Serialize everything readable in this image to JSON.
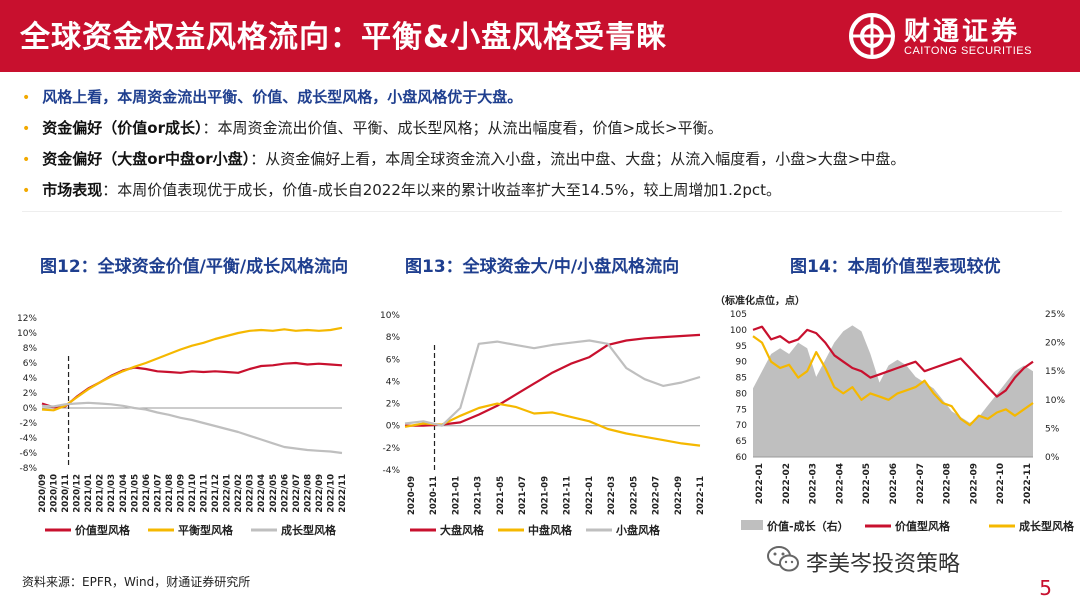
{
  "header": {
    "title": "全球资金权益风格流向：平衡&小盘风格受青睐",
    "brand_name": "财通证券",
    "brand_sub": "CAITONG SECURITIES"
  },
  "bullets": [
    {
      "label": "",
      "text": "风格上看，本周资金流出平衡、价值、成长型风格，小盘风格优于大盘。"
    },
    {
      "label": "资金偏好（价值or成长）",
      "text": "：本周资金流出价值、平衡、成长型风格；从流出幅度看，价值>成长>平衡。"
    },
    {
      "label": "资金偏好（大盘or中盘or小盘）",
      "text": "：从资金偏好上看，本周全球资金流入小盘，流出中盘、大盘；从流入幅度看，小盘>大盘>中盘。"
    },
    {
      "label": "市场表现",
      "text": "：本周价值表现优于成长，价值-成长自2022年以来的累计收益率扩大至14.5%，较上周增加1.2pct。"
    }
  ],
  "colors": {
    "red": "#c8102e",
    "yellow": "#f5b800",
    "gray": "#bfbfbf",
    "navy": "#1f3f8f",
    "bullet": "#f2a900"
  },
  "chart_data": [
    {
      "type": "line",
      "title": "图12：全球资金价值/平衡/成长风格流向",
      "ylim": [
        -8,
        12
      ],
      "yticks": [
        "12%",
        "10%",
        "8%",
        "6%",
        "4%",
        "2%",
        "0%",
        "-2%",
        "-4%",
        "-6%",
        "-8%"
      ],
      "xticks": [
        "2020/09",
        "2020/10",
        "2020/11",
        "2020/12",
        "2021/01",
        "2021/02",
        "2021/03",
        "2021/04",
        "2021/05",
        "2021/06",
        "2021/07",
        "2021/08",
        "2021/09",
        "2021/10",
        "2021/11",
        "2021/12",
        "2022/01",
        "2022/02",
        "2022/03",
        "2022/04",
        "2022/05",
        "2022/06",
        "2022/07",
        "2022/08",
        "2022/09",
        "2022/10",
        "2022/11"
      ],
      "marker_index": 2.3,
      "series": [
        {
          "name": "价值型风格",
          "color": "#c8102e",
          "values": [
            0.6,
            0.1,
            0.2,
            1.5,
            2.6,
            3.4,
            4.3,
            5.0,
            5.4,
            5.2,
            4.9,
            4.8,
            4.7,
            4.9,
            4.8,
            4.9,
            4.8,
            4.7,
            5.2,
            5.6,
            5.7,
            5.9,
            6.0,
            5.8,
            5.9,
            5.8,
            5.7
          ]
        },
        {
          "name": "平衡型风格",
          "color": "#f5b800",
          "values": [
            -0.2,
            -0.3,
            0.3,
            1.4,
            2.5,
            3.4,
            4.2,
            4.9,
            5.5,
            6.0,
            6.6,
            7.2,
            7.8,
            8.3,
            8.7,
            9.2,
            9.6,
            10.0,
            10.3,
            10.4,
            10.3,
            10.5,
            10.3,
            10.4,
            10.3,
            10.4,
            10.7
          ]
        },
        {
          "name": "成长型风格",
          "color": "#bfbfbf",
          "values": [
            0.3,
            0.2,
            0.5,
            0.6,
            0.7,
            0.6,
            0.5,
            0.3,
            0.0,
            -0.2,
            -0.6,
            -0.9,
            -1.3,
            -1.6,
            -2.0,
            -2.4,
            -2.8,
            -3.2,
            -3.7,
            -4.2,
            -4.7,
            -5.2,
            -5.4,
            -5.6,
            -5.7,
            -5.8,
            -6.0
          ]
        }
      ]
    },
    {
      "type": "line",
      "title": "图13：全球资金大/中/小盘风格流向",
      "ylim": [
        -4,
        10
      ],
      "yticks": [
        "10%",
        "8%",
        "6%",
        "4%",
        "2%",
        "0%",
        "-2%",
        "-4%"
      ],
      "xticks": [
        "2020-09",
        "2020-11",
        "2021-01",
        "2021-03",
        "2021-05",
        "2021-07",
        "2021-09",
        "2021-11",
        "2022-01",
        "2022-03",
        "2022-05",
        "2022-07",
        "2022-09",
        "2022-11"
      ],
      "marker_index": 2.5,
      "series": [
        {
          "name": "大盘风格",
          "color": "#c8102e",
          "values": [
            0.0,
            0.0,
            0.1,
            0.3,
            1.0,
            1.8,
            2.8,
            3.8,
            4.8,
            5.6,
            6.2,
            7.3,
            7.7,
            7.9,
            8.0,
            8.1,
            8.2
          ]
        },
        {
          "name": "中盘风格",
          "color": "#f5b800",
          "values": [
            -0.1,
            0.2,
            0.1,
            0.9,
            1.6,
            2.0,
            1.7,
            1.1,
            1.2,
            0.8,
            0.4,
            -0.3,
            -0.7,
            -1.0,
            -1.3,
            -1.6,
            -1.8
          ]
        },
        {
          "name": "小盘风格",
          "color": "#bfbfbf",
          "values": [
            0.2,
            0.4,
            0.0,
            1.6,
            7.4,
            7.6,
            7.3,
            7.0,
            7.3,
            7.5,
            7.7,
            7.4,
            5.2,
            4.2,
            3.6,
            3.9,
            4.4
          ]
        }
      ]
    },
    {
      "type": "area+line",
      "title": "图14：本周价值型表现较优",
      "unit_label": "（标准化点位，点）",
      "left_ylim": [
        60,
        105
      ],
      "left_yticks": [
        "105",
        "100",
        "95",
        "90",
        "85",
        "80",
        "75",
        "70",
        "65",
        "60"
      ],
      "right_ylim": [
        0,
        25
      ],
      "right_yticks": [
        "25%",
        "20%",
        "15%",
        "10%",
        "5%",
        "0%"
      ],
      "xticks": [
        "2022-01",
        "2022-02",
        "2022-03",
        "2022-04",
        "2022-05",
        "2022-06",
        "2022-07",
        "2022-08",
        "2022-09",
        "2022-10",
        "2022-11"
      ],
      "series": [
        {
          "name": "价值-成长（右）",
          "axis": "right",
          "color": "#bfbfbf",
          "values": [
            12,
            15,
            18,
            19,
            18,
            20,
            19,
            14,
            17,
            20,
            22,
            23,
            22,
            18,
            13,
            16,
            17,
            16,
            14,
            13,
            12,
            10,
            8,
            7,
            6,
            7,
            9,
            11,
            13,
            15,
            16,
            15
          ]
        },
        {
          "name": "价值型风格",
          "axis": "left",
          "color": "#c8102e",
          "values": [
            100,
            101,
            97,
            98,
            96,
            97,
            100,
            99,
            96,
            92,
            90,
            88,
            87,
            85,
            86,
            87,
            88,
            89,
            90,
            87,
            88,
            89,
            90,
            91,
            88,
            85,
            82,
            79,
            81,
            85,
            88,
            90
          ]
        },
        {
          "name": "成长型风格",
          "axis": "left",
          "color": "#f5b800",
          "values": [
            98,
            96,
            90,
            88,
            89,
            85,
            87,
            93,
            88,
            82,
            80,
            82,
            78,
            80,
            79,
            78,
            80,
            81,
            82,
            84,
            80,
            77,
            76,
            72,
            70,
            73,
            72,
            74,
            75,
            73,
            75,
            77
          ]
        }
      ]
    }
  ],
  "source": "资料来源：EPFR，Wind，财通证券研究所",
  "watermark": "李美岑投资策略",
  "page_number": "5"
}
